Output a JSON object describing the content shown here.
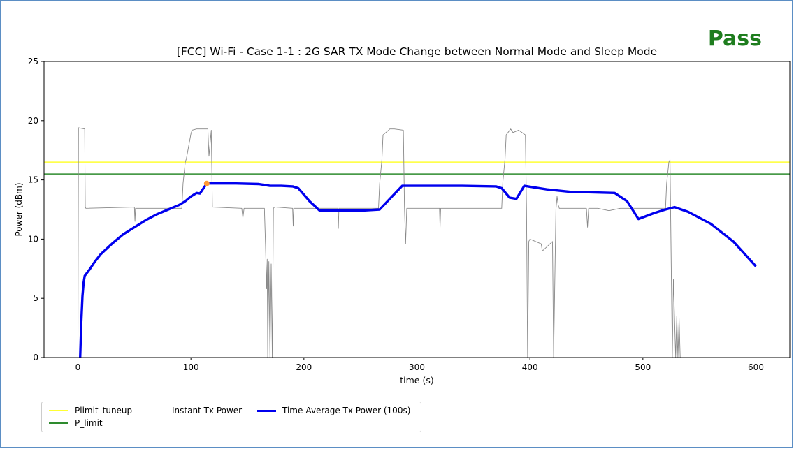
{
  "status": {
    "text": "Pass",
    "color": "#1e7d1e"
  },
  "chart_data": {
    "type": "line",
    "title": "[FCC] Wi-Fi - Case 1-1 : 2G SAR TX Mode Change between Normal Mode and Sleep Mode",
    "xlabel": "time (s)",
    "ylabel": "Power (dBm)",
    "xlim": [
      -30,
      630
    ],
    "ylim": [
      0,
      25
    ],
    "xticks": [
      0,
      100,
      200,
      300,
      400,
      500,
      600
    ],
    "yticks": [
      0,
      5,
      10,
      15,
      20,
      25
    ],
    "grid": false,
    "legend_position": "below-left",
    "series": [
      {
        "name": "Plimit_tuneup",
        "style": "hline",
        "color": "#ffff33",
        "y": 16.5
      },
      {
        "name": "P_limit",
        "style": "hline",
        "color": "#2e8b2e",
        "y": 15.5
      },
      {
        "name": "Instant Tx Power",
        "style": "line",
        "color": "#888888",
        "x": [
          0,
          0.5,
          6,
          6.5,
          7,
          50,
          50.5,
          51,
          92,
          93,
          95,
          96,
          100,
          101,
          105,
          115,
          116,
          118,
          119,
          145,
          146,
          147,
          165,
          166,
          167,
          167.5,
          168,
          169,
          170,
          171,
          172,
          173,
          174,
          175,
          190,
          190.5,
          191,
          230,
          230.5,
          231,
          266,
          267,
          269,
          270,
          275,
          276,
          280,
          288,
          289,
          290,
          291,
          320,
          320.5,
          321,
          375,
          376,
          378,
          379,
          383,
          385,
          390,
          396,
          397,
          398,
          399,
          400,
          410,
          411,
          420,
          421,
          423,
          424,
          425,
          426,
          450,
          451,
          452,
          460,
          470,
          480,
          520,
          521,
          523,
          524,
          526,
          527,
          529,
          530,
          531,
          532,
          533
        ],
        "y": [
          0,
          19.4,
          19.3,
          12.7,
          12.6,
          12.7,
          11.5,
          12.6,
          12.6,
          14.7,
          16.5,
          16.8,
          18.9,
          19.2,
          19.3,
          19.3,
          17.0,
          19.2,
          12.7,
          12.6,
          11.8,
          12.6,
          12.6,
          9.5,
          5.8,
          8.3,
          0,
          8.1,
          0,
          7.9,
          0,
          12.6,
          12.7,
          12.7,
          12.6,
          11.1,
          12.6,
          12.6,
          10.9,
          12.6,
          12.6,
          14.7,
          16.7,
          18.8,
          19.2,
          19.3,
          19.3,
          19.2,
          12.7,
          9.6,
          12.6,
          12.6,
          11.0,
          12.6,
          12.6,
          14.8,
          16.8,
          18.8,
          19.3,
          19.0,
          19.2,
          18.8,
          12.6,
          0,
          9.8,
          10.0,
          9.6,
          9.0,
          9.8,
          0,
          12.5,
          13.6,
          12.9,
          12.6,
          12.6,
          11.0,
          12.6,
          12.6,
          12.4,
          12.6,
          12.6,
          14.7,
          16.5,
          16.7,
          0,
          6.6,
          0,
          3.5,
          0,
          3.3,
          0
        ],
        "series_note": ""
      },
      {
        "name": "Time-Average Tx Power (100s)",
        "style": "line",
        "color": "#0000ee",
        "x": [
          2,
          3,
          4,
          5,
          6,
          10,
          15,
          20,
          30,
          40,
          50,
          60,
          70,
          80,
          90,
          95,
          100,
          105,
          108,
          114,
          120,
          140,
          160,
          170,
          180,
          190,
          195,
          205,
          214,
          230,
          250,
          267,
          277,
          287,
          300,
          340,
          370,
          375,
          382,
          388,
          395,
          415,
          435,
          455,
          475,
          486,
          496,
          510,
          520,
          528,
          540,
          560,
          580,
          600
        ],
        "y": [
          0,
          3.0,
          5.2,
          6.3,
          6.9,
          7.4,
          8.1,
          8.7,
          9.6,
          10.4,
          11.0,
          11.6,
          12.1,
          12.5,
          12.9,
          13.2,
          13.6,
          13.9,
          13.85,
          14.7,
          14.7,
          14.7,
          14.65,
          14.5,
          14.5,
          14.45,
          14.3,
          13.2,
          12.4,
          12.4,
          12.4,
          12.5,
          13.5,
          14.5,
          14.5,
          14.5,
          14.45,
          14.3,
          13.5,
          13.4,
          14.5,
          14.2,
          14.0,
          13.95,
          13.9,
          13.2,
          11.7,
          12.2,
          12.5,
          12.7,
          12.3,
          11.3,
          9.8,
          7.7
        ]
      }
    ],
    "markers": [
      {
        "x": 114,
        "y": 14.7,
        "color": "#ff9933"
      }
    ]
  }
}
